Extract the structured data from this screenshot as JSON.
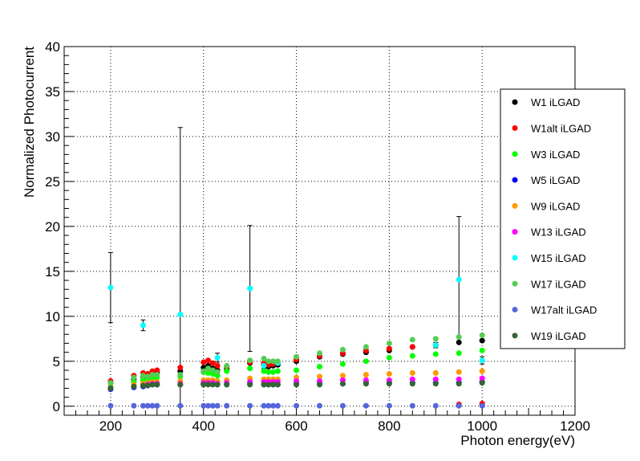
{
  "chart_data": {
    "type": "scatter",
    "title": "",
    "xlabel": "Photon energy(eV)",
    "ylabel": "Normalized Photocurrent",
    "xlim": [
      100,
      1200
    ],
    "ylim": [
      -1,
      40
    ],
    "xticks": [
      200,
      400,
      600,
      800,
      1000,
      1200
    ],
    "yticks": [
      0,
      5,
      10,
      15,
      20,
      25,
      30,
      35,
      40
    ],
    "grid": true,
    "legend_position": "right",
    "series": [
      {
        "name": "W1  iLGAD",
        "color": "#000000",
        "x": [
          200,
          250,
          270,
          280,
          290,
          300,
          350,
          400,
          410,
          420,
          430,
          450,
          500,
          530,
          540,
          550,
          560,
          600,
          650,
          700,
          750,
          800,
          850,
          900,
          950,
          1000
        ],
        "y": [
          2.6,
          3.0,
          3.3,
          3.1,
          3.6,
          3.7,
          3.9,
          4.3,
          4.5,
          4.2,
          4.0,
          4.1,
          4.8,
          4.6,
          4.4,
          4.5,
          4.6,
          5.0,
          5.5,
          5.8,
          6.0,
          6.2,
          6.6,
          6.8,
          7.1,
          7.3
        ]
      },
      {
        "name": "W1alt  iLGAD",
        "color": "#ff0000",
        "x": [
          200,
          250,
          270,
          280,
          290,
          300,
          350,
          400,
          410,
          420,
          430,
          450,
          500,
          530,
          540,
          550,
          560,
          600,
          650,
          700,
          750,
          800,
          850,
          900,
          950,
          1000
        ],
        "y": [
          2.8,
          3.4,
          3.7,
          3.6,
          3.9,
          4.0,
          4.3,
          4.9,
          5.1,
          4.8,
          4.5,
          4.4,
          4.9,
          4.8,
          4.6,
          4.7,
          4.8,
          5.2,
          5.6,
          5.9,
          6.2,
          6.4,
          6.6,
          6.8,
          0.2,
          0.3
        ]
      },
      {
        "name": "W3  iLGAD",
        "color": "#00ff00",
        "x": [
          200,
          250,
          270,
          280,
          290,
          300,
          350,
          400,
          410,
          420,
          430,
          450,
          500,
          530,
          540,
          550,
          560,
          600,
          650,
          700,
          750,
          800,
          850,
          900,
          950,
          1000
        ],
        "y": [
          2.2,
          2.7,
          2.9,
          3.0,
          3.1,
          3.2,
          3.3,
          3.8,
          3.7,
          3.6,
          3.4,
          3.9,
          4.2,
          3.9,
          3.8,
          3.8,
          3.9,
          4.0,
          4.4,
          4.7,
          5.0,
          5.4,
          5.6,
          5.8,
          5.9,
          6.2
        ]
      },
      {
        "name": "W5  iLGAD",
        "color": "#0000ff",
        "x": [
          200,
          250,
          270,
          280,
          290,
          300,
          350,
          400,
          410,
          420,
          430,
          450,
          500,
          530,
          540,
          550,
          560,
          600,
          650,
          700,
          750,
          800,
          850,
          900,
          950,
          1000
        ],
        "y": [
          1.9,
          2.1,
          2.2,
          2.3,
          2.4,
          2.4,
          2.4,
          2.5,
          2.5,
          2.5,
          2.4,
          2.4,
          2.5,
          2.4,
          2.4,
          2.4,
          2.4,
          2.5,
          2.5,
          2.5,
          2.6,
          2.6,
          2.6,
          2.6,
          2.6,
          2.7
        ]
      },
      {
        "name": "W9  iLGAD",
        "color": "#ff9900",
        "x": [
          200,
          250,
          270,
          280,
          290,
          300,
          350,
          400,
          410,
          420,
          430,
          450,
          500,
          530,
          540,
          550,
          560,
          600,
          650,
          700,
          750,
          800,
          850,
          900,
          950,
          1000
        ],
        "y": [
          2.1,
          2.4,
          2.5,
          2.6,
          2.7,
          2.7,
          2.8,
          2.9,
          2.9,
          2.9,
          2.8,
          2.9,
          3.1,
          3.0,
          3.0,
          3.0,
          3.0,
          3.2,
          3.3,
          3.4,
          3.5,
          3.6,
          3.7,
          3.7,
          3.8,
          3.9
        ]
      },
      {
        "name": "W13  iLGAD",
        "color": "#ff00ff",
        "x": [
          200,
          250,
          270,
          280,
          290,
          300,
          350,
          400,
          410,
          420,
          430,
          450,
          500,
          530,
          540,
          550,
          560,
          600,
          650,
          700,
          750,
          800,
          850,
          900,
          950,
          1000
        ],
        "y": [
          2.0,
          2.2,
          2.3,
          2.4,
          2.5,
          2.5,
          2.5,
          2.6,
          2.6,
          2.6,
          2.5,
          2.6,
          2.7,
          2.7,
          2.7,
          2.7,
          2.7,
          2.8,
          2.8,
          2.9,
          2.9,
          2.9,
          3.0,
          3.0,
          3.0,
          3.1
        ]
      },
      {
        "name": "W15  iLGAD",
        "color": "#00ffff",
        "x": [
          200,
          270,
          350,
          430,
          500,
          530,
          560,
          900,
          950,
          1000
        ],
        "y": [
          13.2,
          9.0,
          10.2,
          5.4,
          13.1,
          4.5,
          4.8,
          6.8,
          14.1,
          5.1
        ],
        "err": [
          3.9,
          0.6,
          20.8,
          0.5,
          7.0,
          0.3,
          0.3,
          0.3,
          7.0,
          0.4
        ]
      },
      {
        "name": "W17  iLGAD",
        "color": "#55cc55",
        "x": [
          200,
          250,
          270,
          280,
          290,
          300,
          350,
          400,
          410,
          420,
          430,
          450,
          500,
          530,
          540,
          550,
          560,
          600,
          650,
          700,
          750,
          800,
          850,
          900,
          950,
          1000
        ],
        "y": [
          2.6,
          3.2,
          3.4,
          3.3,
          3.5,
          3.5,
          3.5,
          3.9,
          4.2,
          4.0,
          3.8,
          4.5,
          5.1,
          5.3,
          5.0,
          5.0,
          5.0,
          5.5,
          5.9,
          6.3,
          6.6,
          7.0,
          7.4,
          7.5,
          7.7,
          7.9
        ]
      },
      {
        "name": "W17alt  iLGAD",
        "color": "#5566dd",
        "x": [
          200,
          250,
          270,
          280,
          290,
          300,
          350,
          400,
          410,
          420,
          430,
          450,
          500,
          530,
          540,
          550,
          560,
          600,
          650,
          700,
          750,
          800,
          850,
          900,
          950,
          1000
        ],
        "y": [
          0.05,
          0.05,
          0.05,
          0.05,
          0.05,
          0.05,
          0.05,
          0.05,
          0.05,
          0.05,
          0.05,
          0.05,
          0.05,
          0.05,
          0.05,
          0.05,
          0.05,
          0.05,
          0.05,
          0.05,
          0.05,
          0.05,
          0.05,
          0.05,
          0.05,
          0.05
        ]
      },
      {
        "name": "W19  iLGAD",
        "color": "#336633",
        "x": [
          200,
          250,
          270,
          280,
          290,
          300,
          350,
          400,
          410,
          420,
          430,
          450,
          500,
          530,
          540,
          550,
          560,
          600,
          650,
          700,
          750,
          800,
          850,
          900,
          950,
          1000
        ],
        "y": [
          2.0,
          2.2,
          2.3,
          2.3,
          2.4,
          2.4,
          2.4,
          2.4,
          2.4,
          2.4,
          2.4,
          2.4,
          2.4,
          2.4,
          2.4,
          2.4,
          2.4,
          2.4,
          2.4,
          2.5,
          2.5,
          2.5,
          2.5,
          2.5,
          2.5,
          2.6
        ]
      }
    ]
  }
}
